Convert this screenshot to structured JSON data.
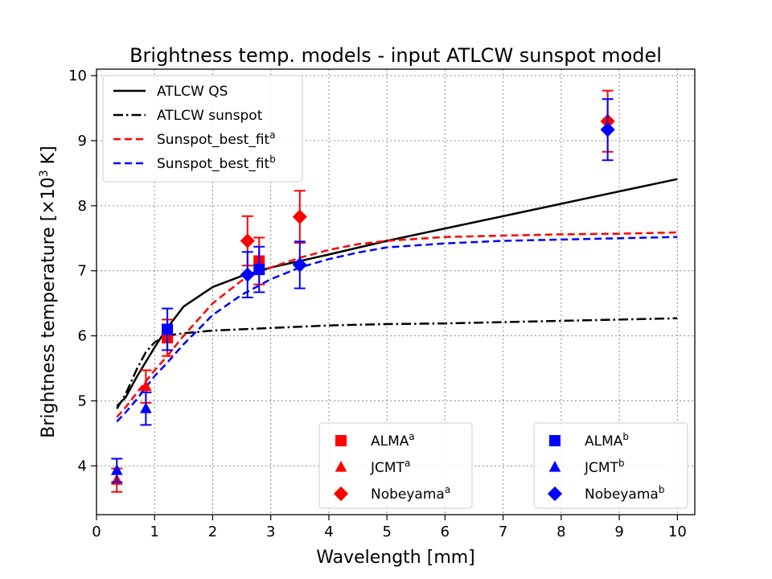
{
  "chart_data": {
    "type": "line",
    "title": "Brightness temp. models - input ATLCW sunspot model",
    "xlabel": "Wavelength [mm]",
    "ylabel_main": "Brightness temperature [×10",
    "ylabel_exp": "3",
    "ylabel_end": " K]",
    "xlim": [
      0,
      10.3
    ],
    "ylim": [
      3.25,
      10.1
    ],
    "xticks": [
      "0",
      "1",
      "2",
      "3",
      "4",
      "5",
      "6",
      "7",
      "8",
      "9",
      "10"
    ],
    "yticks": [
      "4",
      "5",
      "6",
      "7",
      "8",
      "9",
      "10"
    ],
    "grid": true,
    "lines": [
      {
        "name": "ATLCW QS",
        "label": "ATLCW QS",
        "sup": "",
        "color": "#000000",
        "dash": "",
        "lw": 2.5,
        "x": [
          0.35,
          0.5,
          0.7,
          0.85,
          1.0,
          1.2,
          1.5,
          2.0,
          2.5,
          3.0,
          3.5,
          4.0,
          5.0,
          6.0,
          7.0,
          8.0,
          9.0,
          10.0
        ],
        "y": [
          4.92,
          5.05,
          5.38,
          5.6,
          5.82,
          6.1,
          6.45,
          6.75,
          6.92,
          7.05,
          7.15,
          7.25,
          7.46,
          7.65,
          7.84,
          8.03,
          8.22,
          8.41
        ]
      },
      {
        "name": "ATLCW sunspot",
        "label": "ATLCW sunspot",
        "sup": "",
        "color": "#000000",
        "dash": "12 4 2.5 4",
        "lw": 2.5,
        "x": [
          0.35,
          0.5,
          0.7,
          0.85,
          1.0,
          1.2,
          1.5,
          2.0,
          3.0,
          4.0,
          5.0,
          6.0,
          7.0,
          8.0,
          9.0,
          10.0
        ],
        "y": [
          4.88,
          5.1,
          5.5,
          5.75,
          5.9,
          6.0,
          6.04,
          6.08,
          6.12,
          6.16,
          6.18,
          6.19,
          6.21,
          6.23,
          6.25,
          6.27
        ]
      },
      {
        "name": "Sunspot_best_fit_a",
        "label": "Sunspot_best_fit",
        "sup": "a",
        "color": "#ff0000",
        "dash": "9 5",
        "lw": 2.5,
        "x": [
          0.35,
          0.5,
          0.7,
          1.0,
          1.2,
          1.5,
          2.0,
          2.5,
          3.0,
          3.5,
          4.0,
          4.5,
          5.0,
          6.0,
          7.0,
          8.0,
          9.0,
          10.0
        ],
        "y": [
          4.75,
          4.9,
          5.13,
          5.47,
          5.67,
          6.0,
          6.5,
          6.85,
          7.05,
          7.2,
          7.32,
          7.41,
          7.46,
          7.52,
          7.54,
          7.56,
          7.57,
          7.59
        ]
      },
      {
        "name": "Sunspot_best_fit_b",
        "label": "Sunspot_best_fit",
        "sup": "b",
        "color": "#0000ff",
        "dash": "9 5",
        "lw": 2.5,
        "x": [
          0.35,
          0.5,
          0.7,
          1.0,
          1.2,
          1.5,
          2.0,
          2.5,
          3.0,
          3.5,
          4.0,
          4.5,
          5.0,
          6.0,
          7.0,
          8.0,
          9.0,
          10.0
        ],
        "y": [
          4.68,
          4.82,
          5.03,
          5.38,
          5.57,
          5.87,
          6.32,
          6.63,
          6.87,
          7.05,
          7.18,
          7.28,
          7.36,
          7.42,
          7.46,
          7.48,
          7.5,
          7.52
        ]
      }
    ],
    "points": [
      {
        "set": "a",
        "instrument": "ALMA",
        "label": "ALMA",
        "sup": "a",
        "marker": "square",
        "color": "#ff0000",
        "data": [
          {
            "x": 1.22,
            "y": 5.97,
            "err": 0.28
          },
          {
            "x": 2.8,
            "y": 7.15,
            "err": 0.36
          }
        ]
      },
      {
        "set": "a",
        "instrument": "JCMT",
        "label": "JCMT",
        "sup": "a",
        "marker": "triangle",
        "color": "#ff0000",
        "data": [
          {
            "x": 0.35,
            "y": 3.78,
            "err": 0.18
          },
          {
            "x": 0.85,
            "y": 5.22,
            "err": 0.25
          }
        ]
      },
      {
        "set": "a",
        "instrument": "Nobeyama",
        "label": "Nobeyama",
        "sup": "a",
        "marker": "diamond",
        "color": "#ff0000",
        "data": [
          {
            "x": 2.6,
            "y": 7.46,
            "err": 0.38
          },
          {
            "x": 3.5,
            "y": 7.83,
            "err": 0.4
          },
          {
            "x": 8.8,
            "y": 9.3,
            "err": 0.47
          }
        ]
      },
      {
        "set": "b",
        "instrument": "ALMA",
        "label": "ALMA",
        "sup": "b",
        "marker": "square",
        "color": "#0000ff",
        "data": [
          {
            "x": 1.22,
            "y": 6.1,
            "err": 0.32
          },
          {
            "x": 2.8,
            "y": 7.02,
            "err": 0.35
          }
        ]
      },
      {
        "set": "b",
        "instrument": "JCMT",
        "label": "JCMT",
        "sup": "b",
        "marker": "triangle",
        "color": "#0000ff",
        "data": [
          {
            "x": 0.35,
            "y": 3.93,
            "err": 0.18
          },
          {
            "x": 0.85,
            "y": 4.88,
            "err": 0.25
          }
        ]
      },
      {
        "set": "b",
        "instrument": "Nobeyama",
        "label": "Nobeyama",
        "sup": "b",
        "marker": "diamond",
        "color": "#0000ff",
        "data": [
          {
            "x": 2.6,
            "y": 6.94,
            "err": 0.35
          },
          {
            "x": 3.5,
            "y": 7.09,
            "err": 0.36
          },
          {
            "x": 8.8,
            "y": 9.17,
            "err": 0.47
          }
        ]
      }
    ],
    "legends": {
      "lines": {
        "position": "upper-left",
        "entries": [
          "ATLCW QS",
          "ATLCW sunspot",
          "Sunspot_best_fit_a",
          "Sunspot_best_fit_b"
        ]
      },
      "points_a": {
        "position": "lower-center",
        "set": "a"
      },
      "points_b": {
        "position": "lower-right",
        "set": "b"
      }
    }
  }
}
